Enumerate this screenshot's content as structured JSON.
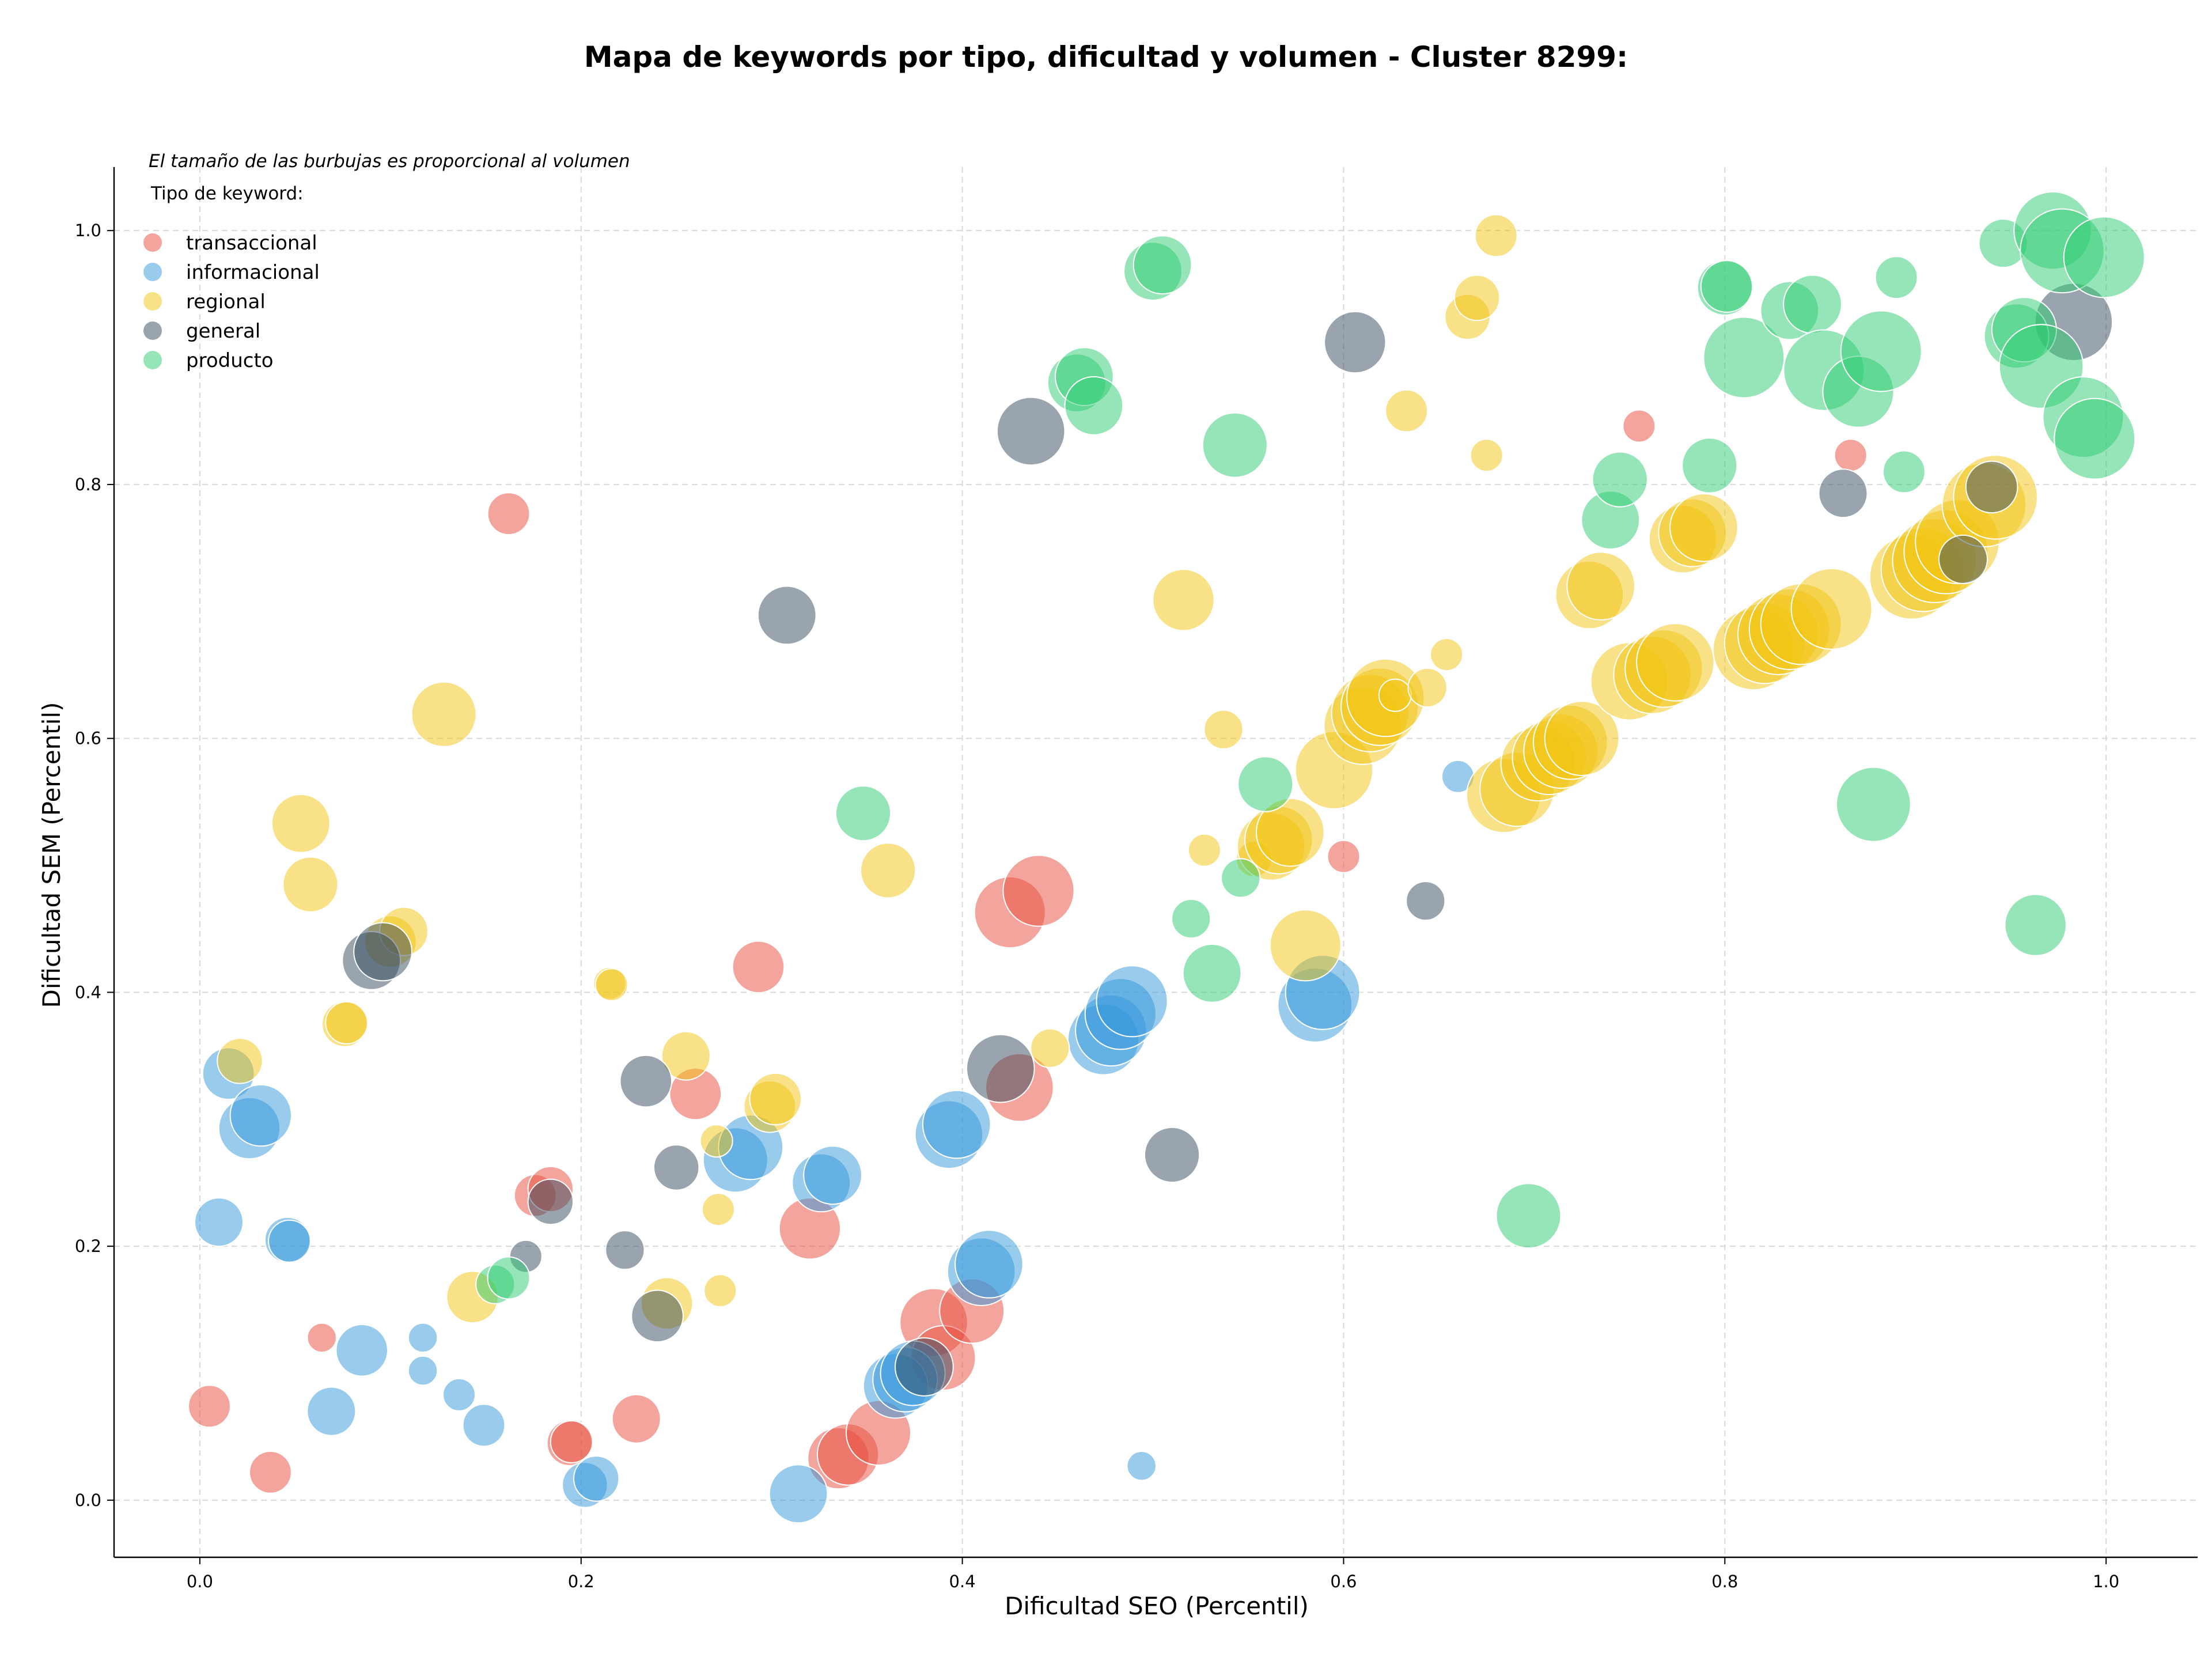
{
  "chart_data": {
    "type": "scatter",
    "title": "Mapa de keywords por tipo, dificultad y volumen - Cluster 8299:",
    "subtitle": "El tamaño de las burbujas es proporcional al volumen",
    "legend_title": "Tipo de keyword:",
    "xlabel": "Dificultad SEO (Percentil)",
    "ylabel": "Dificultad SEM (Percentil)",
    "xlim": [
      -0.045,
      1.048
    ],
    "ylim": [
      -0.045,
      1.05
    ],
    "xticks": [
      "0.0",
      "0.2",
      "0.4",
      "0.6",
      "0.8",
      "1.0"
    ],
    "xtick_values": [
      0,
      0.2,
      0.4,
      0.6,
      0.8,
      1.0
    ],
    "yticks": [
      "0.0",
      "0.2",
      "0.4",
      "0.6",
      "0.8",
      "1.0"
    ],
    "ytick_values": [
      0,
      0.2,
      0.4,
      0.6,
      0.8,
      1.0
    ],
    "grid": true,
    "legend_position": "top-left",
    "series": [
      {
        "name": "transaccional",
        "color": "#e74c3c",
        "points": [
          {
            "x": 0.005,
            "y": 0.074,
            "size": 1.3
          },
          {
            "x": 0.037,
            "y": 0.022,
            "size": 1.3
          },
          {
            "x": 0.064,
            "y": 0.128,
            "size": 0.9
          },
          {
            "x": 0.162,
            "y": 0.777,
            "size": 1.3
          },
          {
            "x": 0.176,
            "y": 0.24,
            "size": 1.3
          },
          {
            "x": 0.184,
            "y": 0.245,
            "size": 1.4
          },
          {
            "x": 0.194,
            "y": 0.045,
            "size": 1.4
          },
          {
            "x": 0.195,
            "y": 0.046,
            "size": 1.3
          },
          {
            "x": 0.229,
            "y": 0.064,
            "size": 1.5
          },
          {
            "x": 0.26,
            "y": 0.32,
            "size": 1.6
          },
          {
            "x": 0.293,
            "y": 0.42,
            "size": 1.6
          },
          {
            "x": 0.32,
            "y": 0.214,
            "size": 1.9
          },
          {
            "x": 0.335,
            "y": 0.033,
            "size": 1.9
          },
          {
            "x": 0.34,
            "y": 0.036,
            "size": 1.9
          },
          {
            "x": 0.356,
            "y": 0.053,
            "size": 2.0
          },
          {
            "x": 0.385,
            "y": 0.14,
            "size": 2.1
          },
          {
            "x": 0.39,
            "y": 0.112,
            "size": 2.0
          },
          {
            "x": 0.405,
            "y": 0.149,
            "size": 2.0
          },
          {
            "x": 0.425,
            "y": 0.463,
            "size": 2.2
          },
          {
            "x": 0.43,
            "y": 0.325,
            "size": 2.1
          },
          {
            "x": 0.44,
            "y": 0.48,
            "size": 2.2
          },
          {
            "x": 0.6,
            "y": 0.507,
            "size": 1.0
          },
          {
            "x": 0.755,
            "y": 0.846,
            "size": 1.0
          },
          {
            "x": 0.866,
            "y": 0.823,
            "size": 1.0
          }
        ]
      },
      {
        "name": "informacional",
        "color": "#3498db",
        "points": [
          {
            "x": 0.01,
            "y": 0.219,
            "size": 1.5
          },
          {
            "x": 0.015,
            "y": 0.336,
            "size": 1.6
          },
          {
            "x": 0.026,
            "y": 0.293,
            "size": 1.9
          },
          {
            "x": 0.032,
            "y": 0.303,
            "size": 1.9
          },
          {
            "x": 0.046,
            "y": 0.205,
            "size": 1.4
          },
          {
            "x": 0.047,
            "y": 0.204,
            "size": 1.3
          },
          {
            "x": 0.069,
            "y": 0.07,
            "size": 1.5
          },
          {
            "x": 0.085,
            "y": 0.118,
            "size": 1.6
          },
          {
            "x": 0.117,
            "y": 0.128,
            "size": 0.9
          },
          {
            "x": 0.117,
            "y": 0.102,
            "size": 0.9
          },
          {
            "x": 0.136,
            "y": 0.083,
            "size": 1.0
          },
          {
            "x": 0.149,
            "y": 0.059,
            "size": 1.3
          },
          {
            "x": 0.202,
            "y": 0.012,
            "size": 1.4
          },
          {
            "x": 0.208,
            "y": 0.017,
            "size": 1.4
          },
          {
            "x": 0.281,
            "y": 0.268,
            "size": 2.0
          },
          {
            "x": 0.289,
            "y": 0.278,
            "size": 2.0
          },
          {
            "x": 0.314,
            "y": 0.005,
            "size": 1.8
          },
          {
            "x": 0.326,
            "y": 0.25,
            "size": 1.8
          },
          {
            "x": 0.332,
            "y": 0.256,
            "size": 1.8
          },
          {
            "x": 0.365,
            "y": 0.09,
            "size": 2.0
          },
          {
            "x": 0.37,
            "y": 0.095,
            "size": 2.0
          },
          {
            "x": 0.374,
            "y": 0.1,
            "size": 2.0
          },
          {
            "x": 0.393,
            "y": 0.288,
            "size": 2.1
          },
          {
            "x": 0.397,
            "y": 0.296,
            "size": 2.1
          },
          {
            "x": 0.41,
            "y": 0.18,
            "size": 2.1
          },
          {
            "x": 0.414,
            "y": 0.186,
            "size": 2.1
          },
          {
            "x": 0.474,
            "y": 0.363,
            "size": 2.2
          },
          {
            "x": 0.478,
            "y": 0.37,
            "size": 2.2
          },
          {
            "x": 0.483,
            "y": 0.383,
            "size": 2.2
          },
          {
            "x": 0.489,
            "y": 0.393,
            "size": 2.2
          },
          {
            "x": 0.494,
            "y": 0.027,
            "size": 0.9
          },
          {
            "x": 0.585,
            "y": 0.39,
            "size": 2.3
          },
          {
            "x": 0.589,
            "y": 0.4,
            "size": 2.3
          },
          {
            "x": 0.66,
            "y": 0.57,
            "size": 1.0
          }
        ]
      },
      {
        "name": "regional",
        "color": "#f1c40f",
        "points": [
          {
            "x": 0.021,
            "y": 0.346,
            "size": 1.4
          },
          {
            "x": 0.053,
            "y": 0.533,
            "size": 1.8
          },
          {
            "x": 0.058,
            "y": 0.485,
            "size": 1.7
          },
          {
            "x": 0.076,
            "y": 0.375,
            "size": 1.4
          },
          {
            "x": 0.077,
            "y": 0.376,
            "size": 1.3
          },
          {
            "x": 0.1,
            "y": 0.44,
            "size": 1.6
          },
          {
            "x": 0.107,
            "y": 0.448,
            "size": 1.5
          },
          {
            "x": 0.128,
            "y": 0.619,
            "size": 2.0
          },
          {
            "x": 0.143,
            "y": 0.16,
            "size": 1.6
          },
          {
            "x": 0.215,
            "y": 0.407,
            "size": 1.0
          },
          {
            "x": 0.216,
            "y": 0.406,
            "size": 1.0
          },
          {
            "x": 0.245,
            "y": 0.155,
            "size": 1.6
          },
          {
            "x": 0.255,
            "y": 0.35,
            "size": 1.5
          },
          {
            "x": 0.271,
            "y": 0.283,
            "size": 1.0
          },
          {
            "x": 0.272,
            "y": 0.229,
            "size": 1.0
          },
          {
            "x": 0.273,
            "y": 0.165,
            "size": 1.0
          },
          {
            "x": 0.299,
            "y": 0.31,
            "size": 1.6
          },
          {
            "x": 0.302,
            "y": 0.316,
            "size": 1.6
          },
          {
            "x": 0.361,
            "y": 0.496,
            "size": 1.7
          },
          {
            "x": 0.446,
            "y": 0.356,
            "size": 1.2
          },
          {
            "x": 0.516,
            "y": 0.709,
            "size": 1.9
          },
          {
            "x": 0.527,
            "y": 0.512,
            "size": 1.0
          },
          {
            "x": 0.537,
            "y": 0.607,
            "size": 1.2
          },
          {
            "x": 0.553,
            "y": 0.505,
            "size": 1.1
          },
          {
            "x": 0.562,
            "y": 0.515,
            "size": 2.1
          },
          {
            "x": 0.566,
            "y": 0.52,
            "size": 2.1
          },
          {
            "x": 0.572,
            "y": 0.526,
            "size": 2.1
          },
          {
            "x": 0.58,
            "y": 0.437,
            "size": 2.2
          },
          {
            "x": 0.595,
            "y": 0.575,
            "size": 2.4
          },
          {
            "x": 0.61,
            "y": 0.61,
            "size": 2.4
          },
          {
            "x": 0.614,
            "y": 0.62,
            "size": 2.4
          },
          {
            "x": 0.619,
            "y": 0.625,
            "size": 2.4
          },
          {
            "x": 0.622,
            "y": 0.632,
            "size": 2.4
          },
          {
            "x": 0.627,
            "y": 0.634,
            "size": 1.0
          },
          {
            "x": 0.633,
            "y": 0.858,
            "size": 1.3
          },
          {
            "x": 0.644,
            "y": 0.64,
            "size": 1.2
          },
          {
            "x": 0.654,
            "y": 0.666,
            "size": 1.0
          },
          {
            "x": 0.665,
            "y": 0.932,
            "size": 1.4
          },
          {
            "x": 0.67,
            "y": 0.947,
            "size": 1.4
          },
          {
            "x": 0.675,
            "y": 0.823,
            "size": 1.0
          },
          {
            "x": 0.68,
            "y": 0.996,
            "size": 1.3
          },
          {
            "x": 0.684,
            "y": 0.555,
            "size": 2.3
          },
          {
            "x": 0.691,
            "y": 0.56,
            "size": 2.3
          },
          {
            "x": 0.702,
            "y": 0.58,
            "size": 2.3
          },
          {
            "x": 0.708,
            "y": 0.585,
            "size": 2.3
          },
          {
            "x": 0.714,
            "y": 0.59,
            "size": 2.3
          },
          {
            "x": 0.719,
            "y": 0.597,
            "size": 2.3
          },
          {
            "x": 0.725,
            "y": 0.6,
            "size": 2.3
          },
          {
            "x": 0.729,
            "y": 0.713,
            "size": 2.1
          },
          {
            "x": 0.735,
            "y": 0.72,
            "size": 2.1
          },
          {
            "x": 0.75,
            "y": 0.645,
            "size": 2.4
          },
          {
            "x": 0.762,
            "y": 0.65,
            "size": 2.4
          },
          {
            "x": 0.768,
            "y": 0.655,
            "size": 2.4
          },
          {
            "x": 0.774,
            "y": 0.66,
            "size": 2.4
          },
          {
            "x": 0.778,
            "y": 0.757,
            "size": 2.1
          },
          {
            "x": 0.783,
            "y": 0.762,
            "size": 2.1
          },
          {
            "x": 0.789,
            "y": 0.766,
            "size": 2.1
          },
          {
            "x": 0.815,
            "y": 0.67,
            "size": 2.5
          },
          {
            "x": 0.821,
            "y": 0.675,
            "size": 2.5
          },
          {
            "x": 0.828,
            "y": 0.682,
            "size": 2.5
          },
          {
            "x": 0.834,
            "y": 0.686,
            "size": 2.5
          },
          {
            "x": 0.84,
            "y": 0.69,
            "size": 2.5
          },
          {
            "x": 0.856,
            "y": 0.702,
            "size": 2.5
          },
          {
            "x": 0.898,
            "y": 0.727,
            "size": 2.6
          },
          {
            "x": 0.904,
            "y": 0.733,
            "size": 2.6
          },
          {
            "x": 0.91,
            "y": 0.74,
            "size": 2.6
          },
          {
            "x": 0.916,
            "y": 0.747,
            "size": 2.6
          },
          {
            "x": 0.922,
            "y": 0.755,
            "size": 2.6
          },
          {
            "x": 0.936,
            "y": 0.784,
            "size": 2.6
          },
          {
            "x": 0.942,
            "y": 0.79,
            "size": 2.6
          }
        ]
      },
      {
        "name": "general",
        "color": "#34495e",
        "points": [
          {
            "x": 0.09,
            "y": 0.425,
            "size": 1.8
          },
          {
            "x": 0.096,
            "y": 0.432,
            "size": 1.8
          },
          {
            "x": 0.171,
            "y": 0.192,
            "size": 1.0
          },
          {
            "x": 0.184,
            "y": 0.235,
            "size": 1.4
          },
          {
            "x": 0.223,
            "y": 0.197,
            "size": 1.2
          },
          {
            "x": 0.234,
            "y": 0.33,
            "size": 1.6
          },
          {
            "x": 0.24,
            "y": 0.145,
            "size": 1.6
          },
          {
            "x": 0.25,
            "y": 0.262,
            "size": 1.4
          },
          {
            "x": 0.308,
            "y": 0.697,
            "size": 1.8
          },
          {
            "x": 0.38,
            "y": 0.105,
            "size": 1.8
          },
          {
            "x": 0.42,
            "y": 0.34,
            "size": 2.1
          },
          {
            "x": 0.436,
            "y": 0.842,
            "size": 2.1
          },
          {
            "x": 0.51,
            "y": 0.272,
            "size": 1.7
          },
          {
            "x": 0.606,
            "y": 0.912,
            "size": 1.9
          },
          {
            "x": 0.643,
            "y": 0.472,
            "size": 1.2
          },
          {
            "x": 0.862,
            "y": 0.793,
            "size": 1.5
          },
          {
            "x": 0.925,
            "y": 0.741,
            "size": 1.5
          },
          {
            "x": 0.94,
            "y": 0.798,
            "size": 1.6
          },
          {
            "x": 0.983,
            "y": 0.928,
            "size": 2.4
          }
        ]
      },
      {
        "name": "producto",
        "color": "#2ecc71",
        "points": [
          {
            "x": 0.155,
            "y": 0.17,
            "size": 1.2
          },
          {
            "x": 0.162,
            "y": 0.175,
            "size": 1.3
          },
          {
            "x": 0.348,
            "y": 0.541,
            "size": 1.7
          },
          {
            "x": 0.5,
            "y": 0.968,
            "size": 1.8
          },
          {
            "x": 0.505,
            "y": 0.973,
            "size": 1.8
          },
          {
            "x": 0.46,
            "y": 0.88,
            "size": 1.8
          },
          {
            "x": 0.464,
            "y": 0.885,
            "size": 1.8
          },
          {
            "x": 0.469,
            "y": 0.862,
            "size": 1.8
          },
          {
            "x": 0.52,
            "y": 0.458,
            "size": 1.2
          },
          {
            "x": 0.531,
            "y": 0.415,
            "size": 1.8
          },
          {
            "x": 0.543,
            "y": 0.831,
            "size": 2.0
          },
          {
            "x": 0.546,
            "y": 0.49,
            "size": 1.2
          },
          {
            "x": 0.559,
            "y": 0.564,
            "size": 1.7
          },
          {
            "x": 0.697,
            "y": 0.224,
            "size": 2.0
          },
          {
            "x": 0.74,
            "y": 0.772,
            "size": 1.8
          },
          {
            "x": 0.745,
            "y": 0.804,
            "size": 1.7
          },
          {
            "x": 0.792,
            "y": 0.815,
            "size": 1.7
          },
          {
            "x": 0.8,
            "y": 0.955,
            "size": 1.7
          },
          {
            "x": 0.801,
            "y": 0.956,
            "size": 1.6
          },
          {
            "x": 0.81,
            "y": 0.9,
            "size": 2.5
          },
          {
            "x": 0.834,
            "y": 0.937,
            "size": 1.8
          },
          {
            "x": 0.846,
            "y": 0.942,
            "size": 1.8
          },
          {
            "x": 0.852,
            "y": 0.89,
            "size": 2.5
          },
          {
            "x": 0.87,
            "y": 0.873,
            "size": 2.2
          },
          {
            "x": 0.882,
            "y": 0.905,
            "size": 2.5
          },
          {
            "x": 0.878,
            "y": 0.548,
            "size": 2.3
          },
          {
            "x": 0.89,
            "y": 0.963,
            "size": 1.3
          },
          {
            "x": 0.894,
            "y": 0.81,
            "size": 1.3
          },
          {
            "x": 0.946,
            "y": 0.99,
            "size": 1.5
          },
          {
            "x": 0.953,
            "y": 0.917,
            "size": 2.0
          },
          {
            "x": 0.957,
            "y": 0.922,
            "size": 2.0
          },
          {
            "x": 0.963,
            "y": 0.453,
            "size": 1.9
          },
          {
            "x": 0.966,
            "y": 0.893,
            "size": 2.6
          },
          {
            "x": 0.972,
            "y": 1.0,
            "size": 2.4
          },
          {
            "x": 0.977,
            "y": 0.984,
            "size": 2.6
          },
          {
            "x": 0.988,
            "y": 0.853,
            "size": 2.5
          },
          {
            "x": 0.994,
            "y": 0.836,
            "size": 2.5
          },
          {
            "x": 0.999,
            "y": 0.979,
            "size": 2.5
          }
        ]
      }
    ]
  }
}
